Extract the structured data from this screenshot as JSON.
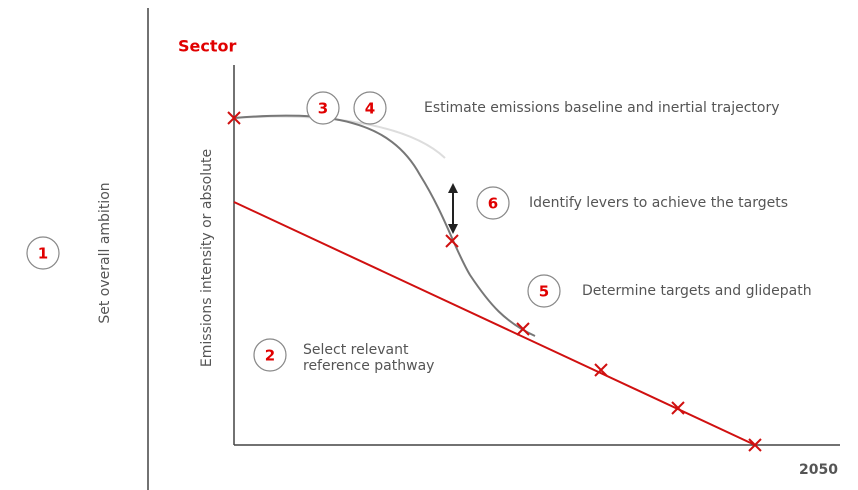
{
  "steps": [
    {
      "number": "1",
      "label": "Set overall ambition"
    },
    {
      "number": "2",
      "label": [
        "Select relevant",
        "reference pathway"
      ]
    },
    {
      "number": "3"
    },
    {
      "number": "4",
      "label": "Estimate emissions baseline and inertial trajectory"
    },
    {
      "number": "5",
      "label": "Determine targets and glidepath"
    },
    {
      "number": "6",
      "label": "Identify levers to achieve the targets"
    }
  ],
  "sector_title": "Sector",
  "y_axis_label": "Emissions intensity or absolute",
  "x_axis_end_label": "2050"
}
